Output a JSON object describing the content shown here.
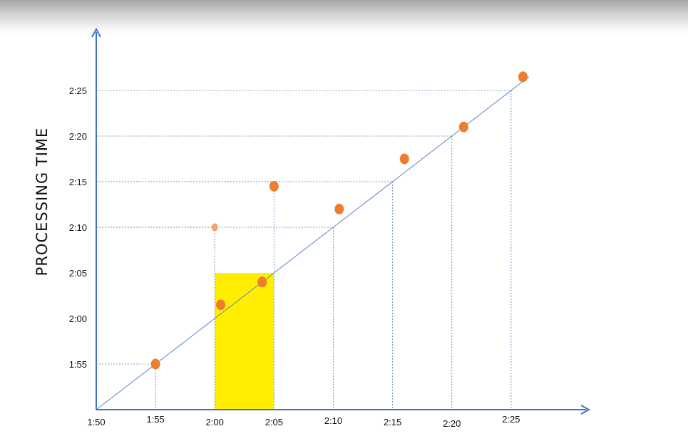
{
  "chart_data": {
    "type": "scatter",
    "title": "",
    "xlabel": "",
    "ylabel": "PROCESSING TIME",
    "x_unit": "time (h:mm)",
    "xlim": [
      "1:50",
      "2:30"
    ],
    "ylim": [
      "1:50",
      "2:30"
    ],
    "x_ticks": [
      "1:50",
      "1:55",
      "2:00",
      "2:05",
      "2:10",
      "2:15",
      "2:20",
      "2:25"
    ],
    "y_ticks": [
      "1:55",
      "2:00",
      "2:05",
      "2:10",
      "2:15",
      "2:20",
      "2:25"
    ],
    "grid": false,
    "points": [
      {
        "x": "1:55",
        "y": "1:55",
        "style": "large"
      },
      {
        "x": "2:00",
        "y": "2:10",
        "style": "small"
      },
      {
        "x": "2:00.5",
        "y": "2:01.5",
        "style": "large"
      },
      {
        "x": "2:04",
        "y": "2:04",
        "style": "large"
      },
      {
        "x": "2:05",
        "y": "2:14.5",
        "style": "large"
      },
      {
        "x": "2:10.5",
        "y": "2:12",
        "style": "large"
      },
      {
        "x": "2:16",
        "y": "2:17.5",
        "style": "large"
      },
      {
        "x": "2:21",
        "y": "2:21",
        "style": "large"
      },
      {
        "x": "2:26",
        "y": "2:26.5",
        "style": "large"
      }
    ],
    "reference_line": {
      "from": [
        "1:50",
        "1:50"
      ],
      "to": [
        "2:26.5",
        "2:26.5"
      ],
      "label": ""
    },
    "guide_lines": [
      {
        "x": "1:55",
        "y": "1:55"
      },
      {
        "x": "2:00",
        "y": "2:10"
      },
      {
        "x": "2:05",
        "y": "2:15"
      },
      {
        "x": "2:10",
        "y": "2:10"
      },
      {
        "x": "2:15",
        "y": "2:15"
      },
      {
        "x": "2:20",
        "y": "2:20"
      },
      {
        "x": "2:25",
        "y": "2:25"
      }
    ],
    "highlight_window": {
      "x_start": "2:00",
      "x_end": "2:05",
      "y_top": "2:05"
    },
    "colors": {
      "axis": "#4472c4",
      "point": "#ed7d31",
      "point_small": "#f4a36b",
      "guide": "#4f81bd",
      "reference_line": "#5b84c8",
      "highlight": "#ffee00"
    }
  }
}
